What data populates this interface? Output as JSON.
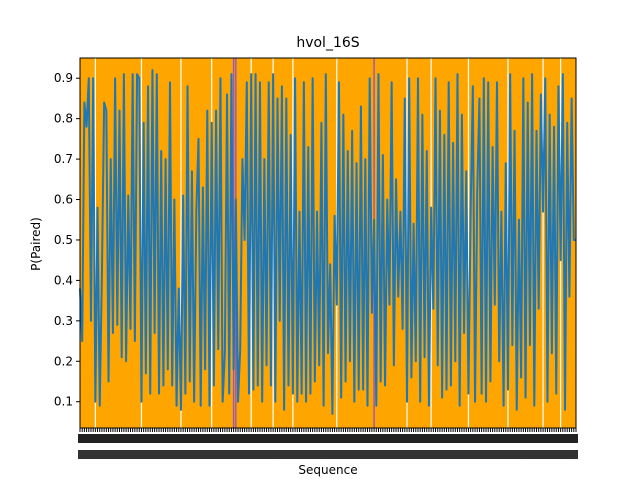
{
  "chart_data": {
    "type": "line",
    "title": "hvol_16S",
    "xlabel": "Sequence",
    "ylabel": "P(Paired)",
    "ylim": [
      0.035,
      0.95
    ],
    "yticks": [
      0.1,
      0.2,
      0.3,
      0.4,
      0.5,
      0.6,
      0.7,
      0.8,
      0.9
    ],
    "ytick_labels": [
      "0.1",
      "0.2",
      "0.3",
      "0.4",
      "0.5",
      "0.6",
      "0.7",
      "0.8",
      "0.9"
    ],
    "x_count": 230,
    "x_tick_labels_note": "one dense overlapping label per sequence position",
    "background_color": "#ffa500",
    "highlight_color": "#9b59b6",
    "line_color": "#1f77b4",
    "grid": false,
    "highlight_positions": [
      70,
      71,
      134
    ],
    "unpaired_gap_positions": [
      7,
      28,
      46,
      60,
      78,
      88,
      97,
      117,
      149,
      160,
      177,
      195,
      211,
      219
    ],
    "series": [
      {
        "values": [
          0.38,
          0.25,
          0.84,
          0.78,
          0.9,
          0.3,
          0.9,
          0.1,
          0.58,
          0.09,
          0.42,
          0.84,
          0.82,
          0.15,
          0.7,
          0.27,
          0.9,
          0.29,
          0.82,
          0.21,
          0.91,
          0.2,
          0.61,
          0.28,
          0.91,
          0.25,
          0.91,
          0.9,
          0.1,
          0.79,
          0.17,
          0.88,
          0.12,
          0.92,
          0.27,
          0.91,
          0.12,
          0.72,
          0.14,
          0.7,
          0.18,
          0.89,
          0.14,
          0.6,
          0.09,
          0.38,
          0.08,
          0.61,
          0.12,
          0.88,
          0.15,
          0.67,
          0.1,
          0.57,
          0.75,
          0.09,
          0.63,
          0.18,
          0.82,
          0.09,
          0.79,
          0.14,
          0.82,
          0.23,
          0.9,
          0.1,
          0.22,
          0.86,
          0.12,
          0.91,
          0.18,
          0.6,
          0.1,
          0.23,
          0.7,
          0.5,
          0.89,
          0.12,
          0.91,
          0.13,
          0.91,
          0.14,
          0.89,
          0.1,
          0.7,
          0.19,
          0.89,
          0.14,
          0.91,
          0.1,
          0.85,
          0.3,
          0.88,
          0.08,
          0.85,
          0.14,
          0.76,
          0.12,
          0.9,
          0.1,
          0.57,
          0.12,
          0.89,
          0.1,
          0.73,
          0.12,
          0.9,
          0.15,
          0.57,
          0.19,
          0.79,
          0.09,
          0.91,
          0.22,
          0.44,
          0.07,
          0.56,
          0.34,
          0.89,
          0.11,
          0.81,
          0.15,
          0.72,
          0.2,
          0.77,
          0.1,
          0.69,
          0.13,
          0.83,
          0.13,
          0.7,
          0.09,
          0.9,
          0.32,
          0.55,
          0.09,
          0.91,
          0.15,
          0.71,
          0.14,
          0.6,
          0.34,
          0.89,
          0.19,
          0.65,
          0.36,
          0.57,
          0.28,
          0.85,
          0.1,
          0.9,
          0.16,
          0.54,
          0.2,
          0.9,
          0.1,
          0.81,
          0.21,
          0.72,
          0.09,
          0.58,
          0.33,
          0.9,
          0.19,
          0.82,
          0.11,
          0.76,
          0.13,
          0.89,
          0.14,
          0.74,
          0.2,
          0.91,
          0.09,
          0.81,
          0.27,
          0.67,
          0.12,
          0.57,
          0.88,
          0.1,
          0.62,
          0.85,
          0.12,
          0.9,
          0.1,
          0.89,
          0.15,
          0.73,
          0.34,
          0.89,
          0.2,
          0.57,
          0.09,
          0.69,
          0.13,
          0.91,
          0.24,
          0.77,
          0.08,
          0.55,
          0.16,
          0.9,
          0.11,
          0.84,
          0.24,
          0.91,
          0.09,
          0.77,
          0.33,
          0.86,
          0.57,
          0.9,
          0.1,
          0.81,
          0.22,
          0.78,
          0.12,
          0.88,
          0.45,
          0.91,
          0.08,
          0.79,
          0.36,
          0.85,
          0.5,
          0.5
        ]
      }
    ]
  }
}
